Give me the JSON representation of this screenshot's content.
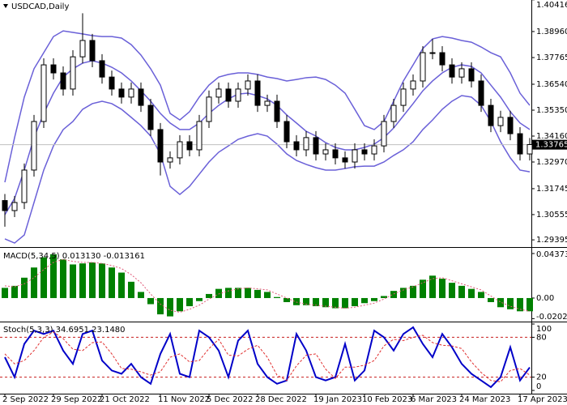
{
  "chart_data": [
    {
      "type": "candlestick",
      "title": "USDCAD,Daily",
      "categories": [
        "2 Sep 2022",
        null,
        null,
        null,
        null,
        "29 Sep 2022",
        null,
        null,
        null,
        null,
        "21 Oct 2022",
        null,
        null,
        null,
        null,
        null,
        "11 Nov 2022",
        null,
        null,
        null,
        null,
        "5 Dec 2022",
        null,
        null,
        null,
        null,
        "28 Dec 2022",
        null,
        null,
        null,
        null,
        null,
        "19 Jan 2023",
        null,
        null,
        null,
        null,
        "10 Feb 2023",
        null,
        null,
        null,
        null,
        "6 Mar 2023",
        null,
        null,
        null,
        null,
        "24 Mar 2023",
        null,
        null,
        null,
        null,
        null,
        "17 Apr 2023",
        null
      ],
      "open": [
        1.312,
        1.3074,
        1.3111,
        1.326,
        1.3483,
        1.3743,
        1.3706,
        1.3632,
        1.378,
        1.3855,
        1.3762,
        1.3687,
        1.3632,
        1.3595,
        1.3632,
        1.3557,
        1.3446,
        1.3297,
        1.3316,
        1.339,
        1.3353,
        1.3483,
        1.3595,
        1.3632,
        1.3576,
        1.3632,
        1.3669,
        1.3557,
        1.3576,
        1.3483,
        1.339,
        1.3353,
        1.3409,
        1.3334,
        1.3353,
        1.3316,
        1.3297,
        1.3353,
        1.3334,
        1.3371,
        1.3483,
        1.3557,
        1.3632,
        1.3669,
        1.3799,
        1.3799,
        1.3743,
        1.3687,
        1.3725,
        1.3669,
        1.3557,
        1.3464,
        1.3502,
        1.3427,
        1.3334
      ],
      "high": [
        1.315,
        1.3141,
        1.329,
        1.3513,
        1.3773,
        1.3773,
        1.3736,
        1.381,
        1.398,
        1.3885,
        1.3792,
        1.3717,
        1.3662,
        1.3662,
        1.3662,
        1.3587,
        1.3476,
        1.3346,
        1.342,
        1.342,
        1.3513,
        1.3625,
        1.3662,
        1.3662,
        1.3662,
        1.3699,
        1.3699,
        1.3606,
        1.3606,
        1.3513,
        1.342,
        1.3439,
        1.3439,
        1.3383,
        1.3383,
        1.3346,
        1.3383,
        1.3383,
        1.3401,
        1.3513,
        1.3587,
        1.3662,
        1.3699,
        1.3829,
        1.3862,
        1.3829,
        1.3773,
        1.3755,
        1.3755,
        1.3699,
        1.3587,
        1.3532,
        1.3532,
        1.3457,
        1.3407
      ],
      "low": [
        1.3,
        1.3044,
        1.3081,
        1.323,
        1.3453,
        1.3676,
        1.3602,
        1.3602,
        1.375,
        1.3732,
        1.3657,
        1.3602,
        1.3565,
        1.3565,
        1.3527,
        1.3416,
        1.3235,
        1.3267,
        1.3286,
        1.3323,
        1.3323,
        1.3453,
        1.3565,
        1.3546,
        1.3546,
        1.3602,
        1.3527,
        1.3527,
        1.3453,
        1.336,
        1.3323,
        1.3323,
        1.3304,
        1.3304,
        1.3286,
        1.3267,
        1.3267,
        1.3304,
        1.3304,
        1.3341,
        1.3453,
        1.3527,
        1.3602,
        1.3639,
        1.3769,
        1.3713,
        1.3657,
        1.3657,
        1.3639,
        1.3527,
        1.3434,
        1.3434,
        1.3397,
        1.3304,
        1.3304
      ],
      "close": [
        1.3074,
        1.3111,
        1.326,
        1.3483,
        1.3743,
        1.3706,
        1.3632,
        1.378,
        1.3855,
        1.3762,
        1.3687,
        1.3632,
        1.3595,
        1.3632,
        1.3557,
        1.3446,
        1.3297,
        1.3316,
        1.339,
        1.3353,
        1.3483,
        1.3595,
        1.3632,
        1.3576,
        1.3632,
        1.3669,
        1.3557,
        1.3576,
        1.3483,
        1.339,
        1.3353,
        1.3409,
        1.3334,
        1.3353,
        1.3316,
        1.3297,
        1.3353,
        1.3334,
        1.3371,
        1.3483,
        1.3557,
        1.3632,
        1.3669,
        1.3799,
        1.3799,
        1.3743,
        1.3687,
        1.3725,
        1.3669,
        1.3557,
        1.3464,
        1.3502,
        1.3427,
        1.3334,
        1.3377
      ],
      "series": [
        {
          "color": "#6a60d8",
          "values": [
            1.3204,
            1.3409,
            1.3595,
            1.3725,
            1.3799,
            1.3873,
            1.3899,
            1.3892,
            1.3885,
            1.3877,
            1.3873,
            1.3873,
            1.3866,
            1.3836,
            1.3788,
            1.3725,
            1.365,
            1.352,
            1.349,
            1.3528,
            1.3595,
            1.365,
            1.3687,
            1.3699,
            1.3706,
            1.3706,
            1.3699,
            1.3687,
            1.368,
            1.3669,
            1.3676,
            1.3684,
            1.3687,
            1.3676,
            1.365,
            1.3613,
            1.3539,
            1.3464,
            1.3446,
            1.3483,
            1.3576,
            1.3669,
            1.3743,
            1.3818,
            1.3862,
            1.3873,
            1.3866,
            1.3855,
            1.3847,
            1.3825,
            1.3799,
            1.378,
            1.3706,
            1.3613,
            1.3557
          ]
        },
        {
          "color": "#6a60d8",
          "values": [
            1.3055,
            1.313,
            1.326,
            1.3409,
            1.352,
            1.3613,
            1.3687,
            1.3725,
            1.3751,
            1.3762,
            1.3751,
            1.3732,
            1.3706,
            1.3669,
            1.3624,
            1.3576,
            1.352,
            1.3476,
            1.3446,
            1.3446,
            1.3476,
            1.352,
            1.3557,
            1.3587,
            1.3609,
            1.3613,
            1.3602,
            1.3587,
            1.3557,
            1.3513,
            1.3476,
            1.3438,
            1.3416,
            1.3386,
            1.3364,
            1.3353,
            1.3353,
            1.3364,
            1.3379,
            1.3409,
            1.3453,
            1.3509,
            1.3565,
            1.3624,
            1.3669,
            1.3706,
            1.3732,
            1.3743,
            1.3736,
            1.3706,
            1.365,
            1.3595,
            1.3528,
            1.3476,
            1.3446
          ]
        },
        {
          "color": "#6a60d8",
          "values": [
            1.2944,
            1.2925,
            1.2962,
            1.3111,
            1.326,
            1.3371,
            1.3446,
            1.3483,
            1.3539,
            1.3565,
            1.3576,
            1.3565,
            1.3539,
            1.3502,
            1.3464,
            1.3416,
            1.3334,
            1.3185,
            1.3148,
            1.3185,
            1.3241,
            1.3297,
            1.3342,
            1.3371,
            1.3401,
            1.3416,
            1.3427,
            1.3416,
            1.3379,
            1.3334,
            1.3304,
            1.3286,
            1.3271,
            1.326,
            1.326,
            1.3267,
            1.3275,
            1.3278,
            1.3278,
            1.3297,
            1.3327,
            1.3353,
            1.339,
            1.3446,
            1.349,
            1.3539,
            1.3576,
            1.3602,
            1.3595,
            1.3557,
            1.3483,
            1.339,
            1.3316,
            1.326,
            1.3252
          ]
        }
      ],
      "up_color": "#ffffff",
      "down_color": "#000000",
      "last_price": 1.33765,
      "ylim": [
        1.29065,
        1.40408
      ],
      "yticks": [
        1.40416,
        {
          "value": 1.3896,
          "label": "1.38960"
        },
        1.37765,
        {
          "value": 1.3654,
          "label": "1.36540"
        },
        {
          "value": 1.3535,
          "label": "1.35350"
        },
        {
          "value": 1.3416,
          "label": "1.34160"
        },
        {
          "value": 1.3297,
          "label": "1.32970"
        },
        1.31745,
        1.30555,
        1.29395
      ]
    },
    {
      "type": "bar",
      "title": "MACD(5,34,5) 0.013130 -0.013161",
      "values": [
        0.01,
        0.012,
        0.02,
        0.03,
        0.04,
        0.043,
        0.038,
        0.033,
        0.034,
        0.035,
        0.034,
        0.03,
        0.025,
        0.016,
        0.006,
        -0.006,
        -0.016,
        -0.018,
        -0.013,
        -0.008,
        -0.003,
        0.004,
        0.009,
        0.01,
        0.01,
        0.01,
        0.008,
        0.006,
        0.001,
        -0.004,
        -0.007,
        -0.007,
        -0.008,
        -0.009,
        -0.01,
        -0.01,
        -0.008,
        -0.005,
        -0.003,
        0.002,
        0.007,
        0.01,
        0.012,
        0.018,
        0.022,
        0.019,
        0.015,
        0.012,
        0.009,
        0.006,
        -0.004,
        -0.009,
        -0.011,
        -0.013,
        -0.013
      ],
      "color": "#008000",
      "series": [
        {
          "color": "#e05a78",
          "values": [
            0.012,
            0.011,
            0.014,
            0.02,
            0.028,
            0.035,
            0.038,
            0.036,
            0.035,
            0.035,
            0.034,
            0.032,
            0.029,
            0.023,
            0.015,
            0.004,
            -0.006,
            -0.012,
            -0.014,
            -0.011,
            -0.007,
            -0.001,
            0.004,
            0.007,
            0.009,
            0.01,
            0.009,
            0.008,
            0.004,
            0.0,
            -0.004,
            -0.006,
            -0.007,
            -0.008,
            -0.009,
            -0.01,
            -0.009,
            -0.007,
            -0.005,
            -0.001,
            0.004,
            0.008,
            0.011,
            0.015,
            0.019,
            0.02,
            0.017,
            0.014,
            0.011,
            0.008,
            0.002,
            -0.004,
            -0.008,
            -0.011,
            -0.013
          ]
        }
      ],
      "ylim": [
        -0.0223,
        0.0477
      ],
      "yticks": [
        0.043734,
        {
          "value": 0,
          "label": "0.00"
        },
        -0.020207
      ]
    },
    {
      "type": "line",
      "title": "Stoch(5,3,3) 34.6951 23.1480",
      "series": [
        {
          "color": "#0000c8",
          "values": [
            50,
            20,
            70,
            90,
            85,
            90,
            60,
            40,
            85,
            90,
            45,
            30,
            25,
            40,
            20,
            10,
            55,
            85,
            25,
            20,
            90,
            80,
            60,
            20,
            75,
            90,
            40,
            20,
            10,
            15,
            85,
            60,
            20,
            15,
            20,
            70,
            15,
            30,
            90,
            80,
            60,
            85,
            95,
            70,
            50,
            85,
            65,
            40,
            25,
            15,
            5,
            20,
            65,
            15,
            34.6951
          ]
        },
        {
          "color": "#e03030",
          "values": [
            55,
            40,
            45,
            60,
            80,
            88,
            78,
            62,
            60,
            72,
            73,
            55,
            33,
            32,
            28,
            23,
            28,
            50,
            55,
            43,
            45,
            63,
            77,
            53,
            52,
            62,
            68,
            50,
            23,
            15,
            37,
            53,
            55,
            32,
            18,
            35,
            35,
            38,
            45,
            67,
            77,
            75,
            80,
            83,
            72,
            68,
            67,
            63,
            43,
            27,
            15,
            13,
            30,
            33,
            23.148
          ]
        }
      ],
      "level_color": "#c81e1e",
      "ylim": [
        0,
        100
      ],
      "yticks": [
        100,
        80,
        20,
        0
      ]
    }
  ]
}
